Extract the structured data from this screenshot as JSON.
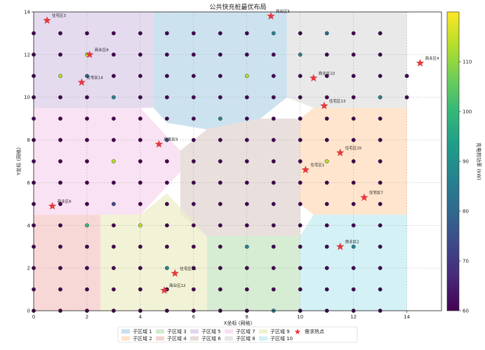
{
  "chart_data": {
    "type": "scatter",
    "title": "公共快充桩最优布局",
    "xlabel": "X坐标 (网格)",
    "ylabel": "Y坐标 (网格)",
    "xlim": [
      0,
      15.3
    ],
    "ylim": [
      0,
      14
    ],
    "xticks": [
      0,
      2,
      4,
      6,
      8,
      10,
      12,
      14
    ],
    "yticks": [
      0,
      2,
      4,
      6,
      8,
      10,
      12,
      14
    ],
    "grid": true,
    "colorbar": {
      "label": "充电桩功率 (kW)",
      "min": 60,
      "max": 120,
      "ticks": [
        60,
        70,
        80,
        90,
        100,
        110
      ],
      "colormap": "viridis"
    },
    "grid_points": {
      "x_values": [
        0,
        1,
        2,
        3,
        4,
        5,
        6,
        7,
        8,
        9,
        10,
        11,
        12,
        13,
        14
      ],
      "y_values": [
        0,
        1,
        2,
        3,
        4,
        5,
        6,
        7,
        8,
        9,
        10,
        11,
        12,
        13
      ],
      "x_values_right": [
        0,
        1,
        2,
        3,
        4,
        5,
        6,
        7,
        8,
        9,
        10,
        11,
        12,
        13
      ],
      "default_power_kw": 60,
      "higher_power": [
        {
          "x": 1,
          "y": 11,
          "kw": 115
        },
        {
          "x": 2,
          "y": 12,
          "kw": 112
        },
        {
          "x": 9,
          "y": 13,
          "kw": 85
        },
        {
          "x": 11,
          "y": 13,
          "kw": 80
        },
        {
          "x": 8,
          "y": 11,
          "kw": 110
        },
        {
          "x": 11,
          "y": 7,
          "kw": 112
        },
        {
          "x": 3,
          "y": 7,
          "kw": 112
        },
        {
          "x": 4,
          "y": 4,
          "kw": 112
        },
        {
          "x": 2,
          "y": 4,
          "kw": 100
        },
        {
          "x": 3,
          "y": 10,
          "kw": 85
        },
        {
          "x": 8,
          "y": 3,
          "kw": 85
        },
        {
          "x": 12,
          "y": 3,
          "kw": 85
        },
        {
          "x": 5,
          "y": 2,
          "kw": 85
        },
        {
          "x": 7,
          "y": 9,
          "kw": 85
        },
        {
          "x": 13,
          "y": 10,
          "kw": 85
        },
        {
          "x": 10,
          "y": 12,
          "kw": 85
        },
        {
          "x": 2,
          "y": 11,
          "kw": 80
        },
        {
          "x": 5,
          "y": 8,
          "kw": 75
        },
        {
          "x": 3,
          "y": 5,
          "kw": 75
        },
        {
          "x": 9,
          "y": 0,
          "kw": 85
        }
      ]
    },
    "demand_hotspots": [
      {
        "label": "住宅区3",
        "x": 0.5,
        "y": 13.6
      },
      {
        "label": "商业区5",
        "x": 8.9,
        "y": 13.8
      },
      {
        "label": "商业区8",
        "x": 2.1,
        "y": 12.0
      },
      {
        "label": "商业区10",
        "x": 10.5,
        "y": 10.9
      },
      {
        "label": "住宅区14",
        "x": 1.8,
        "y": 10.7
      },
      {
        "label": "住宅区13",
        "x": 10.9,
        "y": 9.6
      },
      {
        "label": "商业区4",
        "x": 14.5,
        "y": 11.6
      },
      {
        "label": "住宅区9",
        "x": 4.7,
        "y": 7.8
      },
      {
        "label": "住宅区15",
        "x": 11.5,
        "y": 7.4
      },
      {
        "label": "住宅区1",
        "x": 10.2,
        "y": 6.6
      },
      {
        "label": "住宅区7",
        "x": 12.4,
        "y": 5.3
      },
      {
        "label": "商业区6",
        "x": 0.7,
        "y": 4.9
      },
      {
        "label": "商业区2",
        "x": 11.5,
        "y": 3.0
      },
      {
        "label": "住宅区11",
        "x": 5.3,
        "y": 1.75
      },
      {
        "label": "商业区12",
        "x": 4.9,
        "y": 0.95
      }
    ],
    "subregions": [
      {
        "name": "子区域 1",
        "color": "#bcd8ea",
        "polygon": [
          [
            4.5,
            14
          ],
          [
            9.5,
            14
          ],
          [
            9.5,
            10
          ],
          [
            8.5,
            9
          ],
          [
            6.5,
            8.5
          ],
          [
            5,
            8.8
          ],
          [
            4.5,
            9.5
          ]
        ]
      },
      {
        "name": "子区域 2",
        "color": "#ffdcbc",
        "polygon": [
          [
            10.5,
            9.5
          ],
          [
            14,
            9.5
          ],
          [
            14,
            4.5
          ],
          [
            10.5,
            4.5
          ],
          [
            10,
            5
          ],
          [
            10,
            9
          ]
        ]
      },
      {
        "name": "子区域 3",
        "color": "#c8e6c4",
        "polygon": [
          [
            6.5,
            3.5
          ],
          [
            10,
            3.5
          ],
          [
            10,
            0
          ],
          [
            6.5,
            0
          ]
        ]
      },
      {
        "name": "子区域 4",
        "color": "#f6c9c9",
        "polygon": [
          [
            0,
            4.5
          ],
          [
            2.5,
            4.5
          ],
          [
            2.5,
            0
          ],
          [
            0,
            0
          ]
        ]
      },
      {
        "name": "子区域 5",
        "color": "#dccfe9",
        "polygon": [
          [
            0,
            14
          ],
          [
            4.5,
            14
          ],
          [
            4.5,
            9.5
          ],
          [
            4,
            9.5
          ],
          [
            0,
            9.5
          ]
        ]
      },
      {
        "name": "子区域 6",
        "color": "#e2d4d1",
        "polygon": [
          [
            6.5,
            8.5
          ],
          [
            8.5,
            9
          ],
          [
            10,
            9
          ],
          [
            10,
            5
          ],
          [
            10,
            3.5
          ],
          [
            6.5,
            3.5
          ],
          [
            5.5,
            4.5
          ],
          [
            5.5,
            7.5
          ]
        ]
      },
      {
        "name": "子区域 7",
        "color": "#f7d8ef",
        "polygon": [
          [
            0,
            9.5
          ],
          [
            4,
            9.5
          ],
          [
            5.5,
            7.5
          ],
          [
            5.5,
            6.5
          ],
          [
            4,
            4.5
          ],
          [
            0,
            4.5
          ]
        ]
      },
      {
        "name": "子区域 8",
        "color": "#e2e2e2",
        "polygon": [
          [
            9.5,
            14
          ],
          [
            14,
            14
          ],
          [
            14,
            9.5
          ],
          [
            10.5,
            9.5
          ],
          [
            9.5,
            10
          ]
        ]
      },
      {
        "name": "子区域 9",
        "color": "#eeeec8",
        "polygon": [
          [
            2.5,
            4.5
          ],
          [
            4,
            4.5
          ],
          [
            5,
            5.5
          ],
          [
            6.5,
            3.5
          ],
          [
            6.5,
            0
          ],
          [
            2.5,
            0
          ]
        ]
      },
      {
        "name": "子区域 10",
        "color": "#c6ecf3",
        "polygon": [
          [
            10.5,
            4.5
          ],
          [
            14,
            4.5
          ],
          [
            14,
            0
          ],
          [
            10,
            0
          ],
          [
            10,
            3.5
          ]
        ]
      }
    ],
    "legend": {
      "placement": "bottom-center",
      "entries": [
        "子区域 1",
        "子区域 2",
        "子区域 3",
        "子区域 4",
        "子区域 5",
        "子区域 6",
        "子区域 7",
        "子区域 8",
        "子区域 9",
        "子区域 10",
        "需求热点"
      ]
    }
  }
}
